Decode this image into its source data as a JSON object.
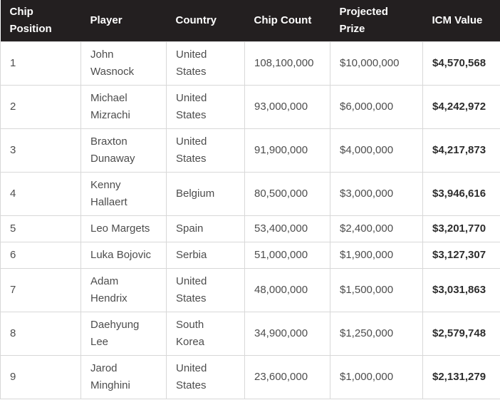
{
  "colors": {
    "header_background": "#231f20",
    "header_text": "#ffffff",
    "body_text": "#4d4d4d",
    "icm_value_text": "#2d2d2d",
    "border": "#d8d8d8",
    "row_background": "#ffffff"
  },
  "table": {
    "columns": [
      {
        "id": "chip-position",
        "key": "chip_position",
        "label": "Chip Position"
      },
      {
        "id": "player",
        "key": "player",
        "label": "Player"
      },
      {
        "id": "country",
        "key": "country",
        "label": "Country"
      },
      {
        "id": "chip-count",
        "key": "chip_count",
        "label": "Chip Count"
      },
      {
        "id": "projected-prize",
        "key": "projected_prize",
        "label": "Projected Prize"
      },
      {
        "id": "icm-value",
        "key": "icm_value",
        "label": "ICM Value"
      }
    ],
    "rows": [
      {
        "chip_position": "1",
        "player": "John Wasnock",
        "country": "United States",
        "chip_count": "108,100,000",
        "projected_prize": "$10,000,000",
        "icm_value": "$4,570,568"
      },
      {
        "chip_position": "2",
        "player": "Michael Mizrachi",
        "country": "United States",
        "chip_count": "93,000,000",
        "projected_prize": "$6,000,000",
        "icm_value": "$4,242,972"
      },
      {
        "chip_position": "3",
        "player": "Braxton Dunaway",
        "country": "United States",
        "chip_count": "91,900,000",
        "projected_prize": "$4,000,000",
        "icm_value": "$4,217,873"
      },
      {
        "chip_position": "4",
        "player": "Kenny Hallaert",
        "country": "Belgium",
        "chip_count": "80,500,000",
        "projected_prize": "$3,000,000",
        "icm_value": "$3,946,616"
      },
      {
        "chip_position": "5",
        "player": "Leo Margets",
        "country": "Spain",
        "chip_count": "53,400,000",
        "projected_prize": "$2,400,000",
        "icm_value": "$3,201,770"
      },
      {
        "chip_position": "6",
        "player": "Luka Bojovic",
        "country": "Serbia",
        "chip_count": "51,000,000",
        "projected_prize": "$1,900,000",
        "icm_value": "$3,127,307"
      },
      {
        "chip_position": "7",
        "player": "Adam Hendrix",
        "country": "United States",
        "chip_count": "48,000,000",
        "projected_prize": "$1,500,000",
        "icm_value": "$3,031,863"
      },
      {
        "chip_position": "8",
        "player": "Daehyung Lee",
        "country": "South Korea",
        "chip_count": "34,900,000",
        "projected_prize": "$1,250,000",
        "icm_value": "$2,579,748"
      },
      {
        "chip_position": "9",
        "player": "Jarod Minghini",
        "country": "United States",
        "chip_count": "23,600,000",
        "projected_prize": "$1,000,000",
        "icm_value": "$2,131,279"
      }
    ]
  },
  "chart_data": {
    "type": "table",
    "title": "",
    "columns": [
      "Chip Position",
      "Player",
      "Country",
      "Chip Count",
      "Projected Prize",
      "ICM Value"
    ],
    "rows": [
      [
        "1",
        "John Wasnock",
        "United States",
        "108,100,000",
        "$10,000,000",
        "$4,570,568"
      ],
      [
        "2",
        "Michael Mizrachi",
        "United States",
        "93,000,000",
        "$6,000,000",
        "$4,242,972"
      ],
      [
        "3",
        "Braxton Dunaway",
        "United States",
        "91,900,000",
        "$4,000,000",
        "$4,217,873"
      ],
      [
        "4",
        "Kenny Hallaert",
        "Belgium",
        "80,500,000",
        "$3,000,000",
        "$3,946,616"
      ],
      [
        "5",
        "Leo Margets",
        "Spain",
        "53,400,000",
        "$2,400,000",
        "$3,201,770"
      ],
      [
        "6",
        "Luka Bojovic",
        "Serbia",
        "51,000,000",
        "$1,900,000",
        "$3,127,307"
      ],
      [
        "7",
        "Adam Hendrix",
        "United States",
        "48,000,000",
        "$1,500,000",
        "$3,031,863"
      ],
      [
        "8",
        "Daehyung Lee",
        "South Korea",
        "34,900,000",
        "$1,250,000",
        "$2,579,748"
      ],
      [
        "9",
        "Jarod Minghini",
        "United States",
        "23,600,000",
        "$1,000,000",
        "$2,131,279"
      ]
    ],
    "chip_counts_numeric": [
      108100000,
      93000000,
      91900000,
      80500000,
      53400000,
      51000000,
      48000000,
      34900000,
      23600000
    ],
    "projected_prizes_numeric": [
      10000000,
      6000000,
      4000000,
      3000000,
      2400000,
      1900000,
      1500000,
      1250000,
      1000000
    ],
    "icm_values_numeric": [
      4570568,
      4242972,
      4217873,
      3946616,
      3201770,
      3127307,
      3031863,
      2579748,
      2131279
    ]
  }
}
